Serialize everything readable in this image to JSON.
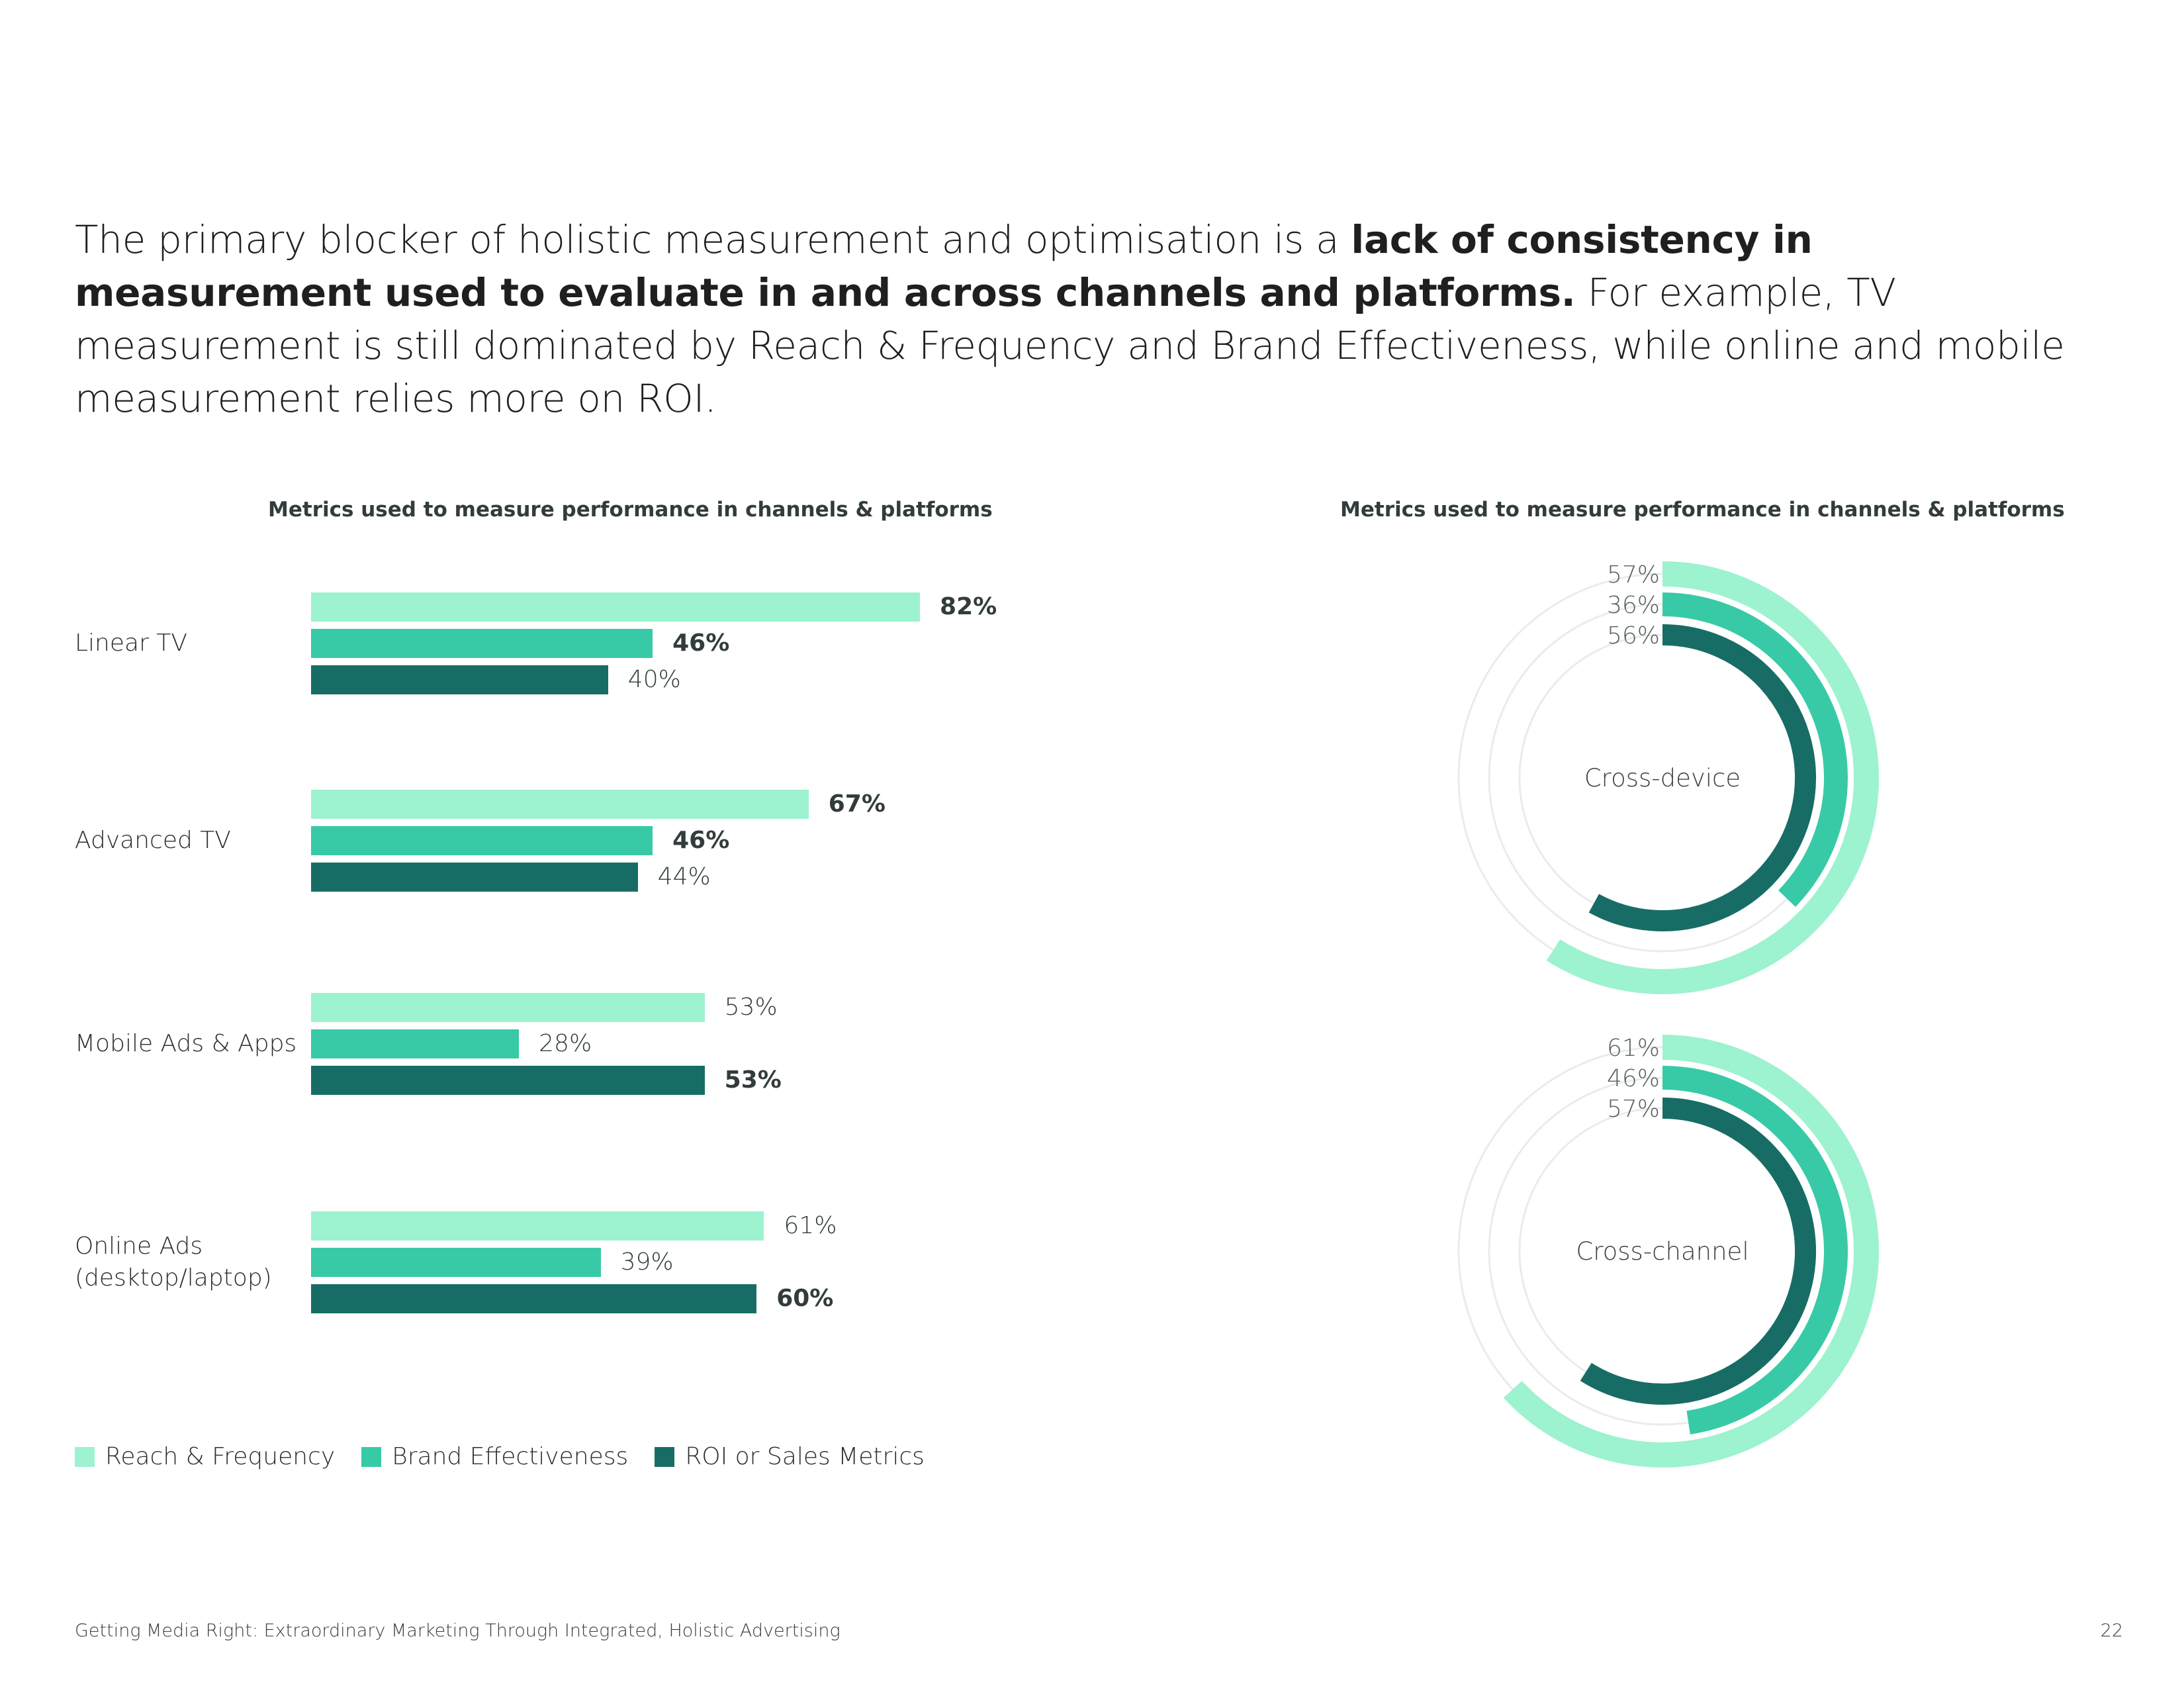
{
  "intro": {
    "part1": "The primary blocker of holistic measurement and optimisation is a ",
    "bold": "lack of consistency in measurement used to evaluate in and across channels and platforms.",
    "part2": " For example, TV measurement is still dominated by Reach & Frequency and Brand Effectiveness, while online and mobile measurement relies more on ROI."
  },
  "colors": {
    "reach": "#9df2d0",
    "brand": "#38caa6",
    "roi": "#176d65",
    "track": "#ebebeb"
  },
  "chart_data": [
    {
      "type": "bar",
      "orientation": "horizontal",
      "title": "Metrics used to measure performance in channels & platforms",
      "categories": [
        "Linear TV",
        "Advanced TV",
        "Mobile Ads & Apps",
        "Online Ads\n(desktop/laptop)"
      ],
      "series": [
        {
          "name": "Reach & Frequency",
          "values": [
            82,
            67,
            53,
            61
          ],
          "labels": [
            "82%",
            "67%",
            "53%",
            "61%"
          ]
        },
        {
          "name": "Brand Effectiveness",
          "values": [
            46,
            46,
            28,
            39
          ],
          "labels": [
            "46%",
            "46%",
            "28%",
            "39%"
          ]
        },
        {
          "name": "ROI or Sales Metrics",
          "values": [
            40,
            44,
            53,
            60
          ],
          "labels": [
            "40%",
            "44%",
            "53%",
            "60%"
          ]
        }
      ],
      "highlighted": [
        [
          true,
          true,
          false
        ],
        [
          true,
          true,
          false
        ],
        [
          false,
          false,
          true
        ],
        [
          false,
          false,
          true
        ]
      ],
      "xlim": [
        0,
        100
      ],
      "legend": "bottom-left"
    },
    {
      "type": "radial-bar",
      "title": "Metrics used to measure performance in channels & platforms",
      "rings": [
        {
          "label": "Cross-device",
          "series": [
            {
              "name": "Reach & Frequency",
              "value": 57,
              "label": "57%"
            },
            {
              "name": "Brand Effectiveness",
              "value": 36,
              "label": "36%"
            },
            {
              "name": "ROI or Sales Metrics",
              "value": 56,
              "label": "56%"
            }
          ]
        },
        {
          "label": "Cross-channel",
          "series": [
            {
              "name": "Reach & Frequency",
              "value": 61,
              "label": "61%"
            },
            {
              "name": "Brand Effectiveness",
              "value": 46,
              "label": "46%"
            },
            {
              "name": "ROI or Sales Metrics",
              "value": 57,
              "label": "57%"
            }
          ]
        }
      ]
    }
  ],
  "footer": {
    "text": "Getting Media Right: Extraordinary Marketing Through Integrated, Holistic Advertising",
    "page": "22"
  }
}
